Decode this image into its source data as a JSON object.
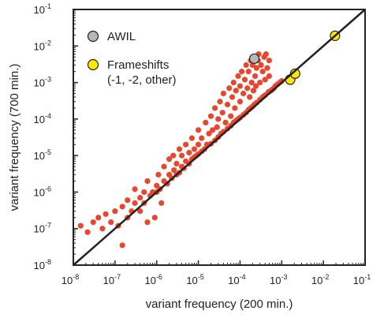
{
  "chart_data": {
    "type": "scatter",
    "xlabel": "variant frequency (200 min.)",
    "ylabel": "variant frequency (700 min.)",
    "xscale": "log",
    "yscale": "log",
    "xlim": [
      1e-08,
      0.1
    ],
    "ylim": [
      1e-08,
      0.1
    ],
    "x_ticks": [
      {
        "base": "10",
        "exp": "-8"
      },
      {
        "base": "10",
        "exp": "-7"
      },
      {
        "base": "10",
        "exp": "-6"
      },
      {
        "base": "10",
        "exp": "-5"
      },
      {
        "base": "10",
        "exp": "-4"
      },
      {
        "base": "10",
        "exp": "-3"
      },
      {
        "base": "10",
        "exp": "-2"
      },
      {
        "base": "10",
        "exp": "-1"
      }
    ],
    "y_ticks": [
      {
        "base": "10",
        "exp": "-8"
      },
      {
        "base": "10",
        "exp": "-7"
      },
      {
        "base": "10",
        "exp": "-6"
      },
      {
        "base": "10",
        "exp": "-5"
      },
      {
        "base": "10",
        "exp": "-4"
      },
      {
        "base": "10",
        "exp": "-3"
      },
      {
        "base": "10",
        "exp": "-2"
      },
      {
        "base": "10",
        "exp": "-1"
      }
    ],
    "reference_line": {
      "from": [
        1e-08,
        1e-08
      ],
      "to": [
        0.1,
        0.1
      ],
      "color": "#222222"
    },
    "legend": {
      "placement": "top-left",
      "entries": [
        {
          "label_lines": [
            "AWIL"
          ],
          "color": "#b7b7b7"
        },
        {
          "label_lines": [
            "Frameshifts",
            "(-1, -2, other)"
          ],
          "color": "#ffe800"
        }
      ]
    },
    "series": [
      {
        "color": "#e6472e",
        "points": [
          [
            1.5e-08,
            1.2e-07
          ],
          [
            2.2e-08,
            8e-08
          ],
          [
            3e-08,
            1.5e-07
          ],
          [
            4e-08,
            2e-07
          ],
          [
            5e-08,
            1e-07
          ],
          [
            6e-08,
            2.5e-07
          ],
          [
            8e-08,
            1.5e-07
          ],
          [
            1e-07,
            3e-07
          ],
          [
            1.2e-07,
            1.2e-07
          ],
          [
            1.5e-07,
            3.5e-08
          ],
          [
            1.5e-07,
            4e-07
          ],
          [
            2e-07,
            2e-07
          ],
          [
            2e-07,
            6e-07
          ],
          [
            2.5e-07,
            3e-07
          ],
          [
            3e-07,
            5e-07
          ],
          [
            3e-07,
            1.2e-06
          ],
          [
            4e-07,
            3e-07
          ],
          [
            4e-07,
            7e-07
          ],
          [
            5e-07,
            5e-07
          ],
          [
            5e-07,
            1e-06
          ],
          [
            6e-07,
            1.5e-07
          ],
          [
            6e-07,
            2e-06
          ],
          [
            7e-07,
            8e-07
          ],
          [
            8e-07,
            1e-06
          ],
          [
            9e-07,
            2e-07
          ],
          [
            1e-06,
            1.5e-06
          ],
          [
            1e-06,
            1e-06
          ],
          [
            1.1e-06,
            3e-06
          ],
          [
            1.2e-06,
            1.2e-06
          ],
          [
            1.3e-06,
            5e-07
          ],
          [
            1.5e-06,
            2e-06
          ],
          [
            1.5e-06,
            5e-06
          ],
          [
            1.8e-06,
            1.7e-06
          ],
          [
            2e-06,
            3e-06
          ],
          [
            2e-06,
            8e-06
          ],
          [
            2.3e-06,
            2.4e-06
          ],
          [
            2.5e-06,
            1e-05
          ],
          [
            2.6e-06,
            4e-06
          ],
          [
            3e-06,
            3e-06
          ],
          [
            3e-06,
            6e-06
          ],
          [
            3.5e-06,
            1.5e-05
          ],
          [
            3.5e-06,
            3.4e-06
          ],
          [
            4e-06,
            5e-06
          ],
          [
            4e-06,
            1e-05
          ],
          [
            4.5e-06,
            4.5e-06
          ],
          [
            5e-06,
            7e-06
          ],
          [
            5e-06,
            2e-05
          ],
          [
            6e-06,
            6e-06
          ],
          [
            6e-06,
            1.2e-05
          ],
          [
            7e-06,
            8e-06
          ],
          [
            7e-06,
            3e-05
          ],
          [
            8e-06,
            9e-06
          ],
          [
            8e-06,
            1.5e-05
          ],
          [
            9e-06,
            1e-05
          ],
          [
            1e-05,
            1.1e-05
          ],
          [
            1e-05,
            2e-05
          ],
          [
            1e-05,
            5e-05
          ],
          [
            1.2e-05,
            1.3e-05
          ],
          [
            1.2e-05,
            3e-05
          ],
          [
            1.4e-05,
            1.5e-05
          ],
          [
            1.5e-05,
            8e-05
          ],
          [
            1.6e-05,
            2e-05
          ],
          [
            1.8e-05,
            4e-05
          ],
          [
            2e-05,
            2.1e-05
          ],
          [
            2e-05,
            0.00012
          ],
          [
            2.2e-05,
            5e-05
          ],
          [
            2.5e-05,
            2.6e-05
          ],
          [
            2.5e-05,
            0.0002
          ],
          [
            2.8e-05,
            6e-05
          ],
          [
            3e-05,
            3.2e-05
          ],
          [
            3e-05,
            0.0001
          ],
          [
            3.3e-05,
            0.0003
          ],
          [
            3.5e-05,
            4e-05
          ],
          [
            3.8e-05,
            0.00015
          ],
          [
            4e-05,
            4.5e-05
          ],
          [
            4e-05,
            0.0005
          ],
          [
            4.5e-05,
            8e-05
          ],
          [
            5e-05,
            5.5e-05
          ],
          [
            5e-05,
            0.00025
          ],
          [
            5.5e-05,
            0.0007
          ],
          [
            6e-05,
            6.5e-05
          ],
          [
            6e-05,
            0.00012
          ],
          [
            6.5e-05,
            0.0004
          ],
          [
            7e-05,
            8e-05
          ],
          [
            7e-05,
            0.001
          ],
          [
            7.5e-05,
            0.0002
          ],
          [
            8e-05,
            9e-05
          ],
          [
            8e-05,
            0.0006
          ],
          [
            9e-05,
            0.0001
          ],
          [
            9e-05,
            0.0015
          ],
          [
            0.0001,
            0.00011
          ],
          [
            0.0001,
            0.0003
          ],
          [
            0.0001,
            0.0008
          ],
          [
            0.00011,
            0.002
          ],
          [
            0.00012,
            0.00013
          ],
          [
            0.00012,
            0.0005
          ],
          [
            0.00013,
            0.0012
          ],
          [
            0.00014,
            0.00015
          ],
          [
            0.00014,
            0.003
          ],
          [
            0.00015,
            0.0007
          ],
          [
            0.00016,
            0.00018
          ],
          [
            0.00016,
            0.002
          ],
          [
            0.00017,
            0.0004
          ],
          [
            0.00018,
            0.0002
          ],
          [
            0.00018,
            0.004
          ],
          [
            0.00019,
            0.001
          ],
          [
            0.0002,
            0.00022
          ],
          [
            0.0002,
            0.003
          ],
          [
            0.00021,
            0.0006
          ],
          [
            0.00022,
            0.00025
          ],
          [
            0.00022,
            0.005
          ],
          [
            0.00023,
            0.0015
          ],
          [
            0.00024,
            0.0008
          ],
          [
            0.00025,
            0.00028
          ],
          [
            0.00025,
            0.0025
          ],
          [
            0.00027,
            0.004
          ],
          [
            0.00028,
            0.006
          ],
          [
            0.0003,
            0.00034
          ],
          [
            0.0003,
            0.001
          ],
          [
            0.00032,
            0.003
          ],
          [
            0.00035,
            0.002
          ],
          [
            0.00035,
            0.0004
          ],
          [
            0.00038,
            0.005
          ],
          [
            0.0004,
            0.0012
          ],
          [
            0.0004,
            0.00045
          ],
          [
            0.00042,
            0.006
          ],
          [
            0.00045,
            0.0025
          ],
          [
            0.00048,
            0.00055
          ],
          [
            0.0005,
            0.004
          ],
          [
            0.0005,
            0.0015
          ],
          [
            0.00055,
            0.0006
          ],
          [
            0.0006,
            0.00065
          ],
          [
            0.00065,
            0.0007
          ],
          [
            0.0007,
            0.0008
          ],
          [
            0.0008,
            0.0009
          ],
          [
            0.0009,
            0.001
          ],
          [
            0.001,
            0.0011
          ]
        ]
      },
      {
        "name": "AWIL",
        "color": "#b7b7b7",
        "points": [
          [
            0.00022,
            0.0045
          ]
        ]
      },
      {
        "name": "Frameshifts",
        "color": "#ffe800",
        "points": [
          [
            0.0016,
            0.0012
          ],
          [
            0.0021,
            0.00175
          ],
          [
            0.019,
            0.019
          ]
        ]
      }
    ]
  }
}
